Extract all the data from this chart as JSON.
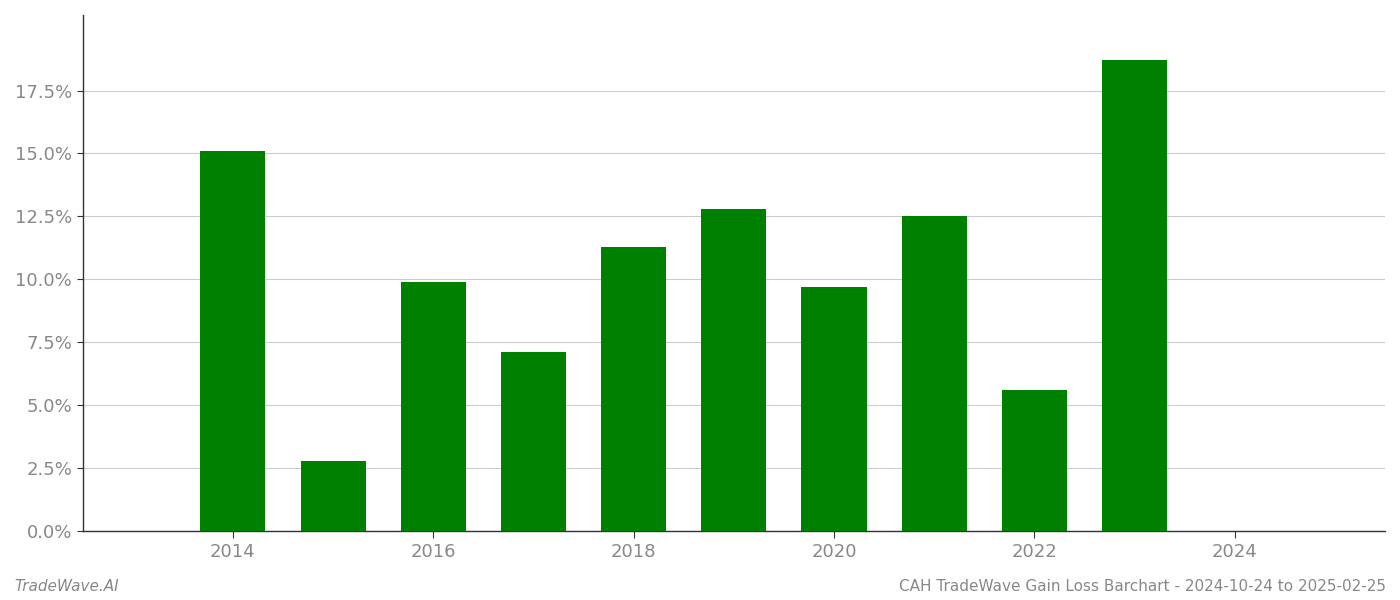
{
  "years": [
    2014,
    2015,
    2016,
    2017,
    2018,
    2019,
    2020,
    2021,
    2022,
    2023
  ],
  "values": [
    0.151,
    0.028,
    0.099,
    0.071,
    0.113,
    0.128,
    0.097,
    0.125,
    0.056,
    0.187
  ],
  "bar_color": "#008000",
  "background_color": "#ffffff",
  "xlabel": "",
  "ylabel": "",
  "ylim": [
    0,
    0.205
  ],
  "yticks": [
    0.0,
    0.025,
    0.05,
    0.075,
    0.1,
    0.125,
    0.15,
    0.175
  ],
  "xtick_years": [
    2014,
    2016,
    2018,
    2020,
    2022,
    2024
  ],
  "xlim": [
    2012.5,
    2025.5
  ],
  "grid_color": "#cccccc",
  "spine_color": "#333333",
  "footer_left": "TradeWave.AI",
  "footer_right": "CAH TradeWave Gain Loss Barchart - 2024-10-24 to 2025-02-25",
  "footer_fontsize": 11,
  "tick_label_color": "#888888",
  "tick_label_fontsize": 13,
  "bar_width": 0.65
}
